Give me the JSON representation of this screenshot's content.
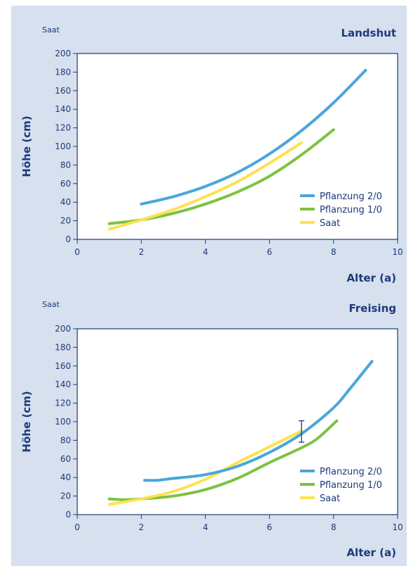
{
  "colors": {
    "background": "#d6e0ee",
    "axis": "#1d3a7a",
    "text": "#1d3a7a",
    "pflanzung_2_0": "#4aa6d8",
    "pflanzung_1_0": "#7dc242",
    "saat": "#fde24f"
  },
  "chart_data": [
    {
      "type": "line",
      "title": "Landshut",
      "corner_label": "Saat",
      "xlabel": "Alter (a)",
      "ylabel": "Höhe (cm)",
      "xlim": [
        0,
        10
      ],
      "ylim": [
        0,
        200
      ],
      "xticks": [
        0,
        2,
        4,
        6,
        8,
        10
      ],
      "yticks": [
        0,
        20,
        40,
        60,
        80,
        100,
        120,
        140,
        160,
        180,
        200
      ],
      "legend": "bottom-right",
      "series": [
        {
          "name": "Pflanzung 2/0",
          "color_key": "pflanzung_2_0",
          "x": [
            2,
            3,
            4,
            5,
            6,
            7,
            8,
            9
          ],
          "y": [
            38,
            46,
            57,
            72,
            92,
            117,
            147,
            182
          ]
        },
        {
          "name": "Pflanzung 1/0",
          "color_key": "pflanzung_1_0",
          "x": [
            1,
            2,
            3,
            4,
            5,
            6,
            7,
            8
          ],
          "y": [
            17,
            21,
            28,
            38,
            51,
            68,
            91,
            118
          ]
        },
        {
          "name": "Saat",
          "color_key": "saat",
          "x": [
            1,
            2,
            3,
            4,
            5,
            6,
            7
          ],
          "y": [
            11,
            21,
            32,
            46,
            62,
            82,
            104
          ]
        }
      ]
    },
    {
      "type": "line",
      "title": "Freising",
      "corner_label": "Saat",
      "xlabel": "Alter (a)",
      "ylabel": "Höhe (cm)",
      "xlim": [
        0,
        10
      ],
      "ylim": [
        0,
        200
      ],
      "xticks": [
        0,
        2,
        4,
        6,
        8,
        10
      ],
      "yticks": [
        0,
        20,
        40,
        60,
        80,
        100,
        120,
        140,
        160,
        180,
        200
      ],
      "legend": "bottom-right",
      "error_bar": {
        "x": 7,
        "low": 78,
        "high": 101
      },
      "series": [
        {
          "name": "Pflanzung 2/0",
          "color_key": "pflanzung_2_0",
          "x": [
            2.1,
            2.5,
            3,
            4,
            5,
            6,
            7,
            8,
            8.5,
            9.2
          ],
          "y": [
            37,
            37,
            39,
            43,
            52,
            67,
            87,
            115,
            135,
            165
          ]
        },
        {
          "name": "Pflanzung 1/0",
          "color_key": "pflanzung_1_0",
          "x": [
            1,
            1.5,
            2,
            3,
            4,
            5,
            6,
            7,
            7.5,
            8.1
          ],
          "y": [
            17,
            16,
            17,
            20,
            27,
            39,
            56,
            72,
            82,
            101
          ]
        },
        {
          "name": "Saat",
          "color_key": "saat",
          "x": [
            1,
            2,
            3,
            4,
            5,
            6,
            7
          ],
          "y": [
            11,
            17,
            25,
            38,
            56,
            73,
            90
          ]
        }
      ]
    }
  ]
}
